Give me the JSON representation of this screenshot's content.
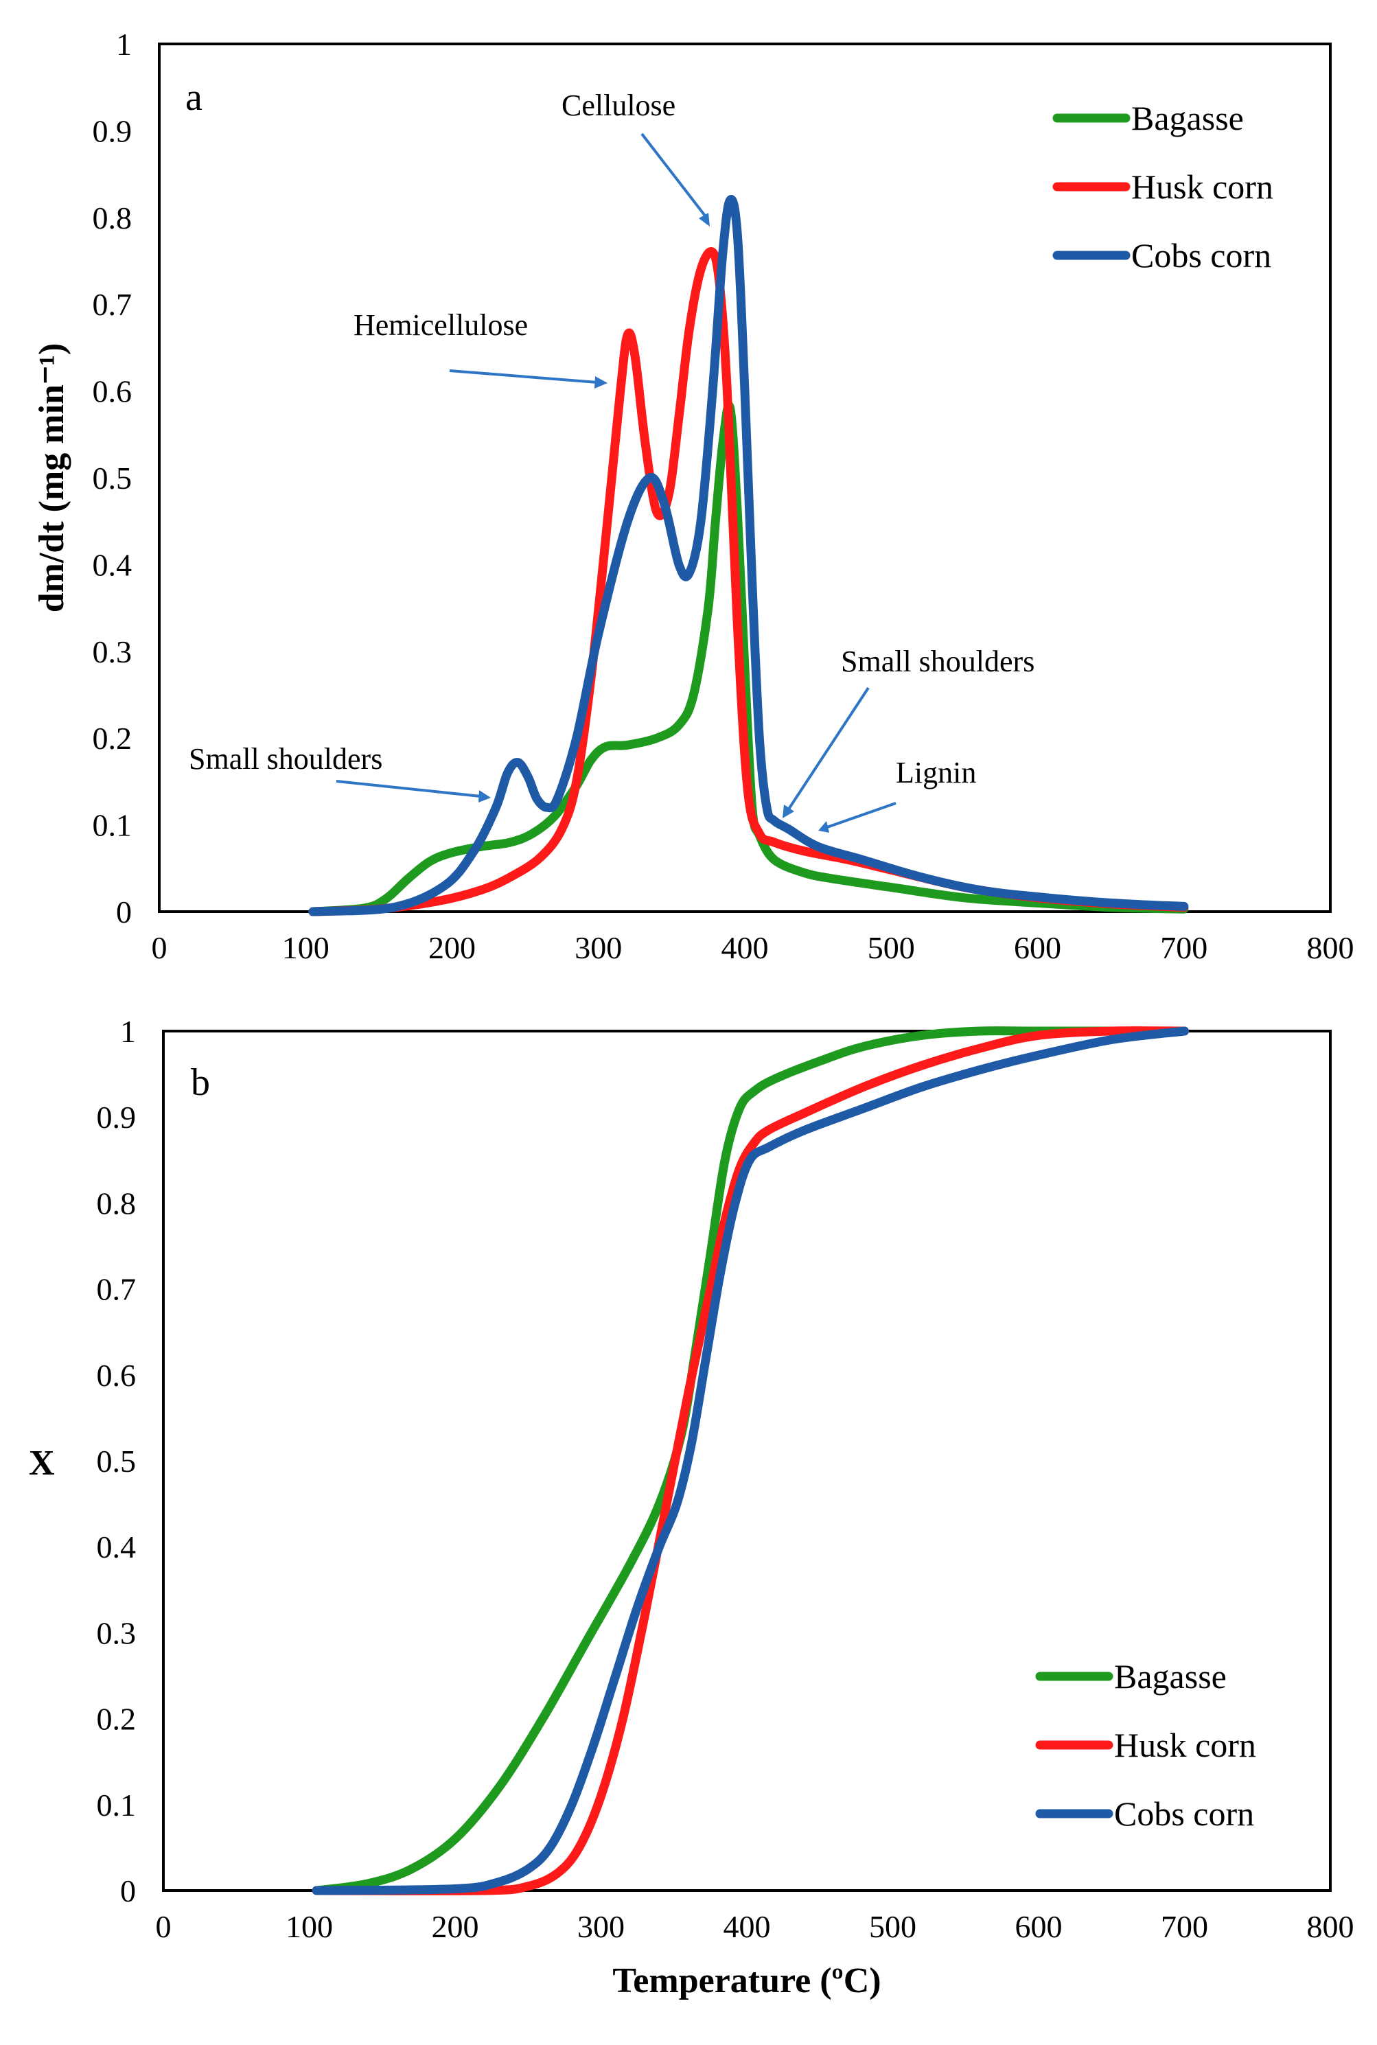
{
  "chart_data": [
    {
      "type": "line",
      "panel_label": "a",
      "xlabel": "",
      "ylabel": "dm/dt (mg min⁻¹)",
      "xlim": [
        0,
        800
      ],
      "ylim": [
        0,
        1
      ],
      "xticks": [
        "0",
        "100",
        "200",
        "300",
        "400",
        "500",
        "600",
        "700",
        "800"
      ],
      "yticks": [
        "0",
        "0.1",
        "0.2",
        "0.3",
        "0.4",
        "0.5",
        "0.6",
        "0.7",
        "0.8",
        "0.9",
        "1"
      ],
      "legend_position": "top-right",
      "series": [
        {
          "name": "Bagasse",
          "color": "#1E9B1E",
          "x": [
            105,
            140,
            155,
            170,
            185,
            200,
            220,
            240,
            255,
            270,
            285,
            295,
            305,
            320,
            340,
            355,
            365,
            375,
            380,
            385,
            390,
            395,
            400,
            405,
            410,
            420,
            440,
            460,
            500,
            550,
            600,
            650,
            700
          ],
          "y": [
            0,
            0.004,
            0.015,
            0.038,
            0.058,
            0.068,
            0.075,
            0.08,
            0.09,
            0.11,
            0.145,
            0.175,
            0.19,
            0.192,
            0.2,
            0.215,
            0.25,
            0.35,
            0.45,
            0.54,
            0.58,
            0.46,
            0.28,
            0.12,
            0.088,
            0.06,
            0.045,
            0.038,
            0.028,
            0.016,
            0.01,
            0.005,
            0.003
          ]
        },
        {
          "name": "Husk corn",
          "color": "#FF1A1A",
          "x": [
            105,
            150,
            190,
            220,
            240,
            260,
            275,
            285,
            295,
            305,
            315,
            320,
            325,
            332,
            340,
            348,
            355,
            362,
            370,
            378,
            383,
            388,
            395,
            402,
            410,
            420,
            440,
            470,
            500,
            550,
            600,
            650,
            700
          ],
          "y": [
            0,
            0.003,
            0.012,
            0.025,
            0.04,
            0.062,
            0.095,
            0.15,
            0.27,
            0.43,
            0.6,
            0.665,
            0.64,
            0.54,
            0.46,
            0.48,
            0.57,
            0.67,
            0.74,
            0.76,
            0.72,
            0.6,
            0.33,
            0.14,
            0.09,
            0.08,
            0.07,
            0.06,
            0.048,
            0.028,
            0.016,
            0.009,
            0.005
          ]
        },
        {
          "name": "Cobs corn",
          "color": "#1F5AA6",
          "x": [
            105,
            160,
            195,
            215,
            230,
            238,
            245,
            252,
            258,
            265,
            272,
            285,
            300,
            320,
            335,
            345,
            355,
            362,
            370,
            378,
            385,
            390,
            395,
            400,
            405,
            410,
            415,
            420,
            430,
            450,
            480,
            520,
            560,
            600,
            650,
            700
          ],
          "y": [
            0,
            0.005,
            0.03,
            0.07,
            0.12,
            0.16,
            0.172,
            0.155,
            0.13,
            0.12,
            0.13,
            0.2,
            0.32,
            0.45,
            0.5,
            0.47,
            0.4,
            0.39,
            0.45,
            0.6,
            0.76,
            0.82,
            0.78,
            0.6,
            0.38,
            0.2,
            0.12,
            0.105,
            0.095,
            0.075,
            0.06,
            0.04,
            0.025,
            0.017,
            0.01,
            0.006
          ]
        }
      ],
      "annotations": [
        "Cellulose",
        "Hemicellulose",
        "Small shoulders",
        "Small shoulders",
        "Lignin"
      ]
    },
    {
      "type": "line",
      "panel_label": "b",
      "xlabel": "Temperature (ºC)",
      "ylabel": "X",
      "xlim": [
        0,
        800
      ],
      "ylim": [
        0,
        1
      ],
      "xticks": [
        "0",
        "100",
        "200",
        "300",
        "400",
        "500",
        "600",
        "700",
        "800"
      ],
      "yticks": [
        "0",
        "0.1",
        "0.2",
        "0.3",
        "0.4",
        "0.5",
        "0.6",
        "0.7",
        "0.8",
        "0.9",
        "1"
      ],
      "legend_position": "bottom-right",
      "series": [
        {
          "name": "Bagasse",
          "color": "#1E9B1E",
          "x": [
            105,
            140,
            170,
            200,
            230,
            260,
            290,
            320,
            340,
            355,
            365,
            375,
            385,
            395,
            405,
            420,
            450,
            480,
            520,
            560,
            600,
            700
          ],
          "y": [
            0,
            0.008,
            0.025,
            0.06,
            0.12,
            0.2,
            0.29,
            0.38,
            0.45,
            0.53,
            0.63,
            0.74,
            0.85,
            0.91,
            0.93,
            0.945,
            0.965,
            0.982,
            0.995,
            1.0,
            1.0,
            1.0
          ]
        },
        {
          "name": "Husk corn",
          "color": "#FF1A1A",
          "x": [
            105,
            220,
            250,
            270,
            285,
            300,
            315,
            330,
            345,
            360,
            375,
            385,
            395,
            405,
            415,
            440,
            480,
            520,
            560,
            600,
            650,
            700
          ],
          "y": [
            0,
            0,
            0.005,
            0.02,
            0.05,
            0.11,
            0.2,
            0.32,
            0.45,
            0.58,
            0.7,
            0.78,
            0.84,
            0.87,
            0.885,
            0.905,
            0.935,
            0.96,
            0.98,
            0.995,
            1.0,
            1.0
          ]
        },
        {
          "name": "Cobs corn",
          "color": "#1F5AA6",
          "x": [
            105,
            200,
            230,
            250,
            265,
            280,
            295,
            310,
            325,
            340,
            352,
            362,
            372,
            382,
            392,
            402,
            415,
            440,
            480,
            520,
            560,
            600,
            650,
            700
          ],
          "y": [
            0,
            0.002,
            0.01,
            0.025,
            0.05,
            0.1,
            0.17,
            0.25,
            0.33,
            0.4,
            0.45,
            0.52,
            0.62,
            0.72,
            0.8,
            0.85,
            0.865,
            0.885,
            0.91,
            0.935,
            0.955,
            0.972,
            0.99,
            1.0
          ]
        }
      ]
    }
  ]
}
